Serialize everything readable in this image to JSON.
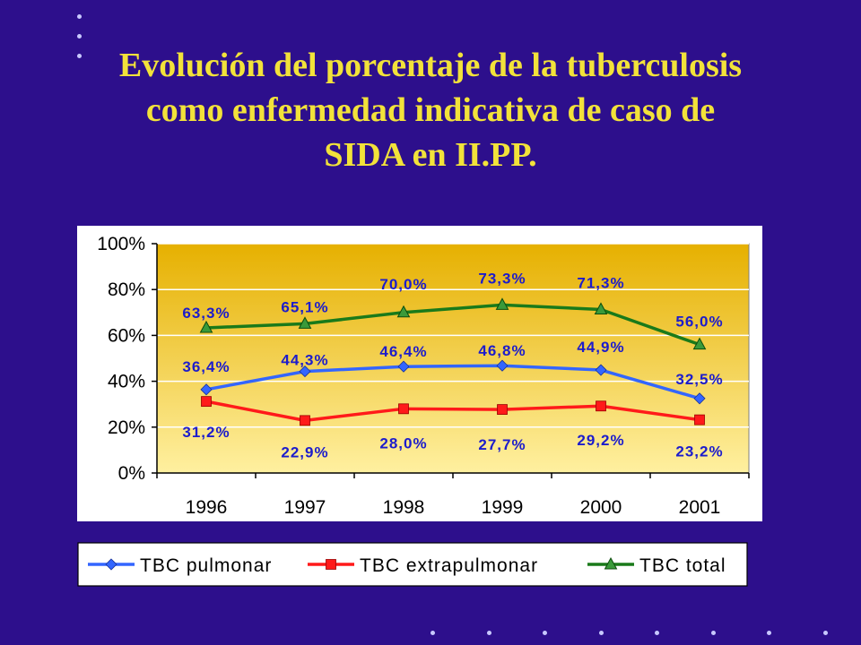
{
  "slide": {
    "title_lines": [
      "Evolución del porcentaje de la tuberculosis",
      "como enfermedad indicativa de caso de",
      "SIDA en II.PP."
    ]
  },
  "colors": {
    "background": "#2d0f8c",
    "title": "#f2e23a",
    "plot_bg": "#e8b800",
    "labels": "#1c1ccc"
  },
  "chart_data": {
    "type": "line",
    "title": "",
    "xlabel": "",
    "ylabel": "",
    "categories": [
      "1996",
      "1997",
      "1998",
      "1999",
      "2000",
      "2001"
    ],
    "ylim": [
      0,
      100
    ],
    "yticks": [
      "0%",
      "20%",
      "40%",
      "60%",
      "80%",
      "100%"
    ],
    "grid": true,
    "legend_position": "bottom",
    "series": [
      {
        "name": "TBC pulmonar",
        "color": "#3366ff",
        "marker": "diamond",
        "values": [
          36.4,
          44.3,
          46.4,
          46.8,
          44.9,
          32.5
        ],
        "labels": [
          "36,4%",
          "44,3%",
          "46,4%",
          "46,8%",
          "44,9%",
          "32,5%"
        ]
      },
      {
        "name": "TBC extrapulmonar",
        "color": "#ff1a1a",
        "marker": "square",
        "values": [
          31.2,
          22.9,
          28.0,
          27.7,
          29.2,
          23.2
        ],
        "labels": [
          "31,2%",
          "22,9%",
          "28,0%",
          "27,7%",
          "29,2%",
          "23,2%"
        ]
      },
      {
        "name": "TBC total",
        "color": "#1a7a1a",
        "marker": "triangle",
        "values": [
          63.3,
          65.1,
          70.0,
          73.3,
          71.3,
          56.0
        ],
        "labels": [
          "63,3%",
          "65,1%",
          "70,0%",
          "73,3%",
          "71,3%",
          "56,0%"
        ]
      }
    ]
  }
}
